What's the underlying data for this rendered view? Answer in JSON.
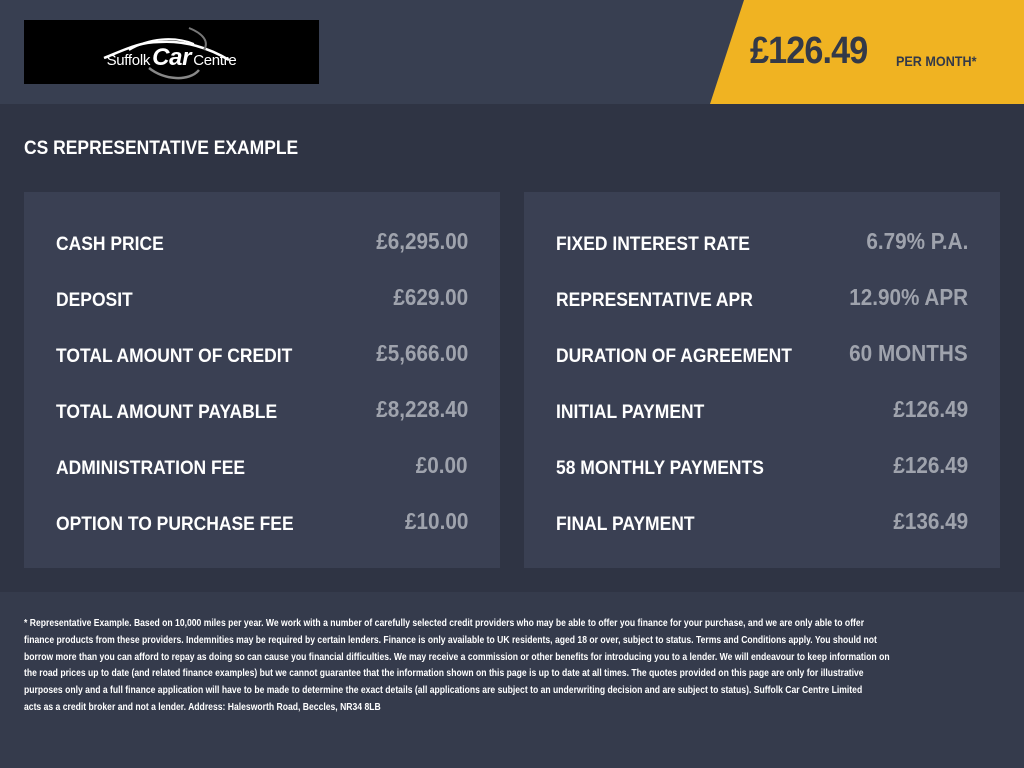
{
  "header": {
    "logo_text": {
      "pre": "Suffolk",
      "mid": "Car",
      "post": "Centre"
    },
    "price": "£126.49",
    "per_month": "PER MONTH*",
    "accent_color": "#f0b322"
  },
  "section_title": "CS REPRESENTATIVE EXAMPLE",
  "left_rows": [
    {
      "label": "CASH PRICE",
      "value": "£6,295.00"
    },
    {
      "label": "DEPOSIT",
      "value": "£629.00"
    },
    {
      "label": "TOTAL AMOUNT OF CREDIT",
      "value": "£5,666.00"
    },
    {
      "label": "TOTAL AMOUNT PAYABLE",
      "value": "£8,228.40"
    },
    {
      "label": "ADMINISTRATION FEE",
      "value": "£0.00"
    },
    {
      "label": "OPTION TO PURCHASE FEE",
      "value": "£10.00"
    }
  ],
  "right_rows": [
    {
      "label": "FIXED INTEREST RATE",
      "value": "6.79% P.A."
    },
    {
      "label": "REPRESENTATIVE APR",
      "value": "12.90% APR"
    },
    {
      "label": "DURATION OF AGREEMENT",
      "value": "60 MONTHS"
    },
    {
      "label": "INITIAL PAYMENT",
      "value": "£126.49"
    },
    {
      "label": "58 MONTHLY PAYMENTS",
      "value": "£126.49"
    },
    {
      "label": "FINAL PAYMENT",
      "value": "£136.49"
    }
  ],
  "disclaimer_lines": [
    "* Representative Example. Based on 10,000 miles per year. We work with a number of carefully selected credit providers who may be able to offer you finance for your purchase, and we are only able to offer",
    "finance products from these providers. Indemnities may be required by certain lenders. Finance is only available to UK residents, aged 18 or over, subject to status. Terms and Conditions apply. You should not",
    "borrow more than you can afford to repay as doing so can cause you financial difficulties. We may receive a commission or other benefits for introducing you to a lender. We will endeavour to keep information on",
    "the road prices up to date (and related finance examples) but we cannot guarantee that the information shown on this page is up to date at all times. The quotes provided on this page are only for illustrative",
    "purposes only and a full finance application will have to be made to determine the exact details (all applications are subject to an underwriting decision and are subject to status). Suffolk Car Centre Limited",
    "acts as a credit broker and not a lender. Address: Halesworth Road, Beccles, NR34 8LB"
  ]
}
